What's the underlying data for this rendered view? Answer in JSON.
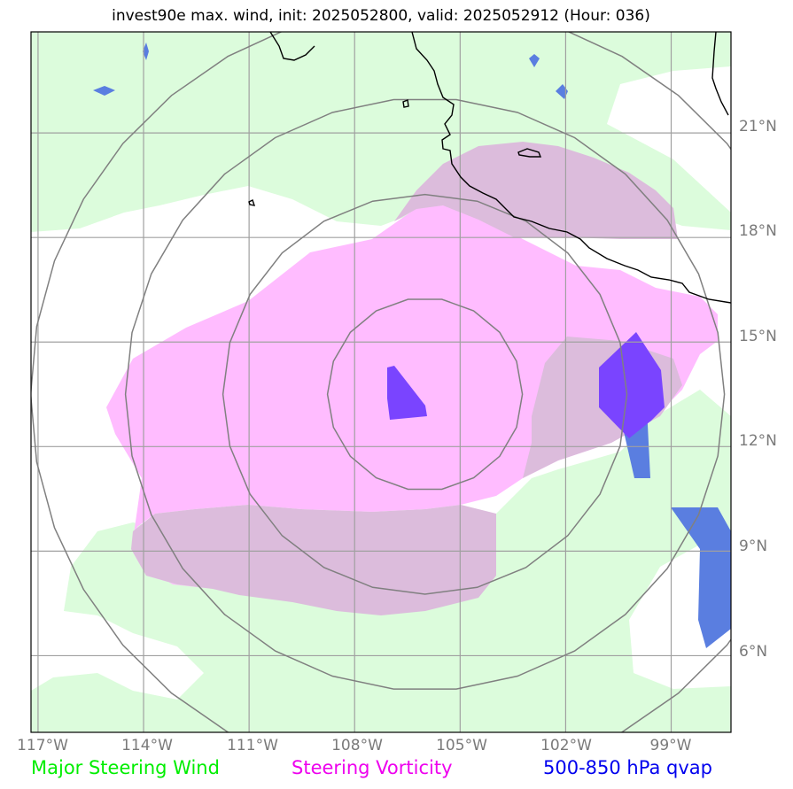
{
  "title": "invest90e max. wind, init: 2025052800, valid: 2025052912 (Hour: 036)",
  "lon_ticks": [
    "117°W",
    "114°W",
    "111°W",
    "108°W",
    "105°W",
    "102°W",
    "99°W"
  ],
  "lat_ticks": [
    "21°N",
    "18°N",
    "15°N",
    "12°N",
    "9°N",
    "6°N"
  ],
  "legend": {
    "major_steering_wind": {
      "label": "Major Steering Wind",
      "color": "#00ee00"
    },
    "steering_vorticity": {
      "label": "Steering Vorticity",
      "color": "#ee00ee"
    },
    "qvap": {
      "label": "500-850 hPa qvap",
      "color": "#0000ee"
    }
  },
  "colors": {
    "wind_fill": "#dcfcdc",
    "vorticity_fill": "#ffbcff",
    "overlap_fill": "#dcbcdc",
    "qvap_fill": "#5a7ee0",
    "qvap_strong": "#7a44ff",
    "grid": "#a0a0a0",
    "range_rings": "#808080",
    "coastline": "#000000"
  },
  "map_data": {
    "extent_lon": [
      -117.2,
      -97.3
    ],
    "extent_lat": [
      3.8,
      23.9
    ],
    "storm_center": {
      "lon": -106,
      "lat": 13.5
    }
  }
}
